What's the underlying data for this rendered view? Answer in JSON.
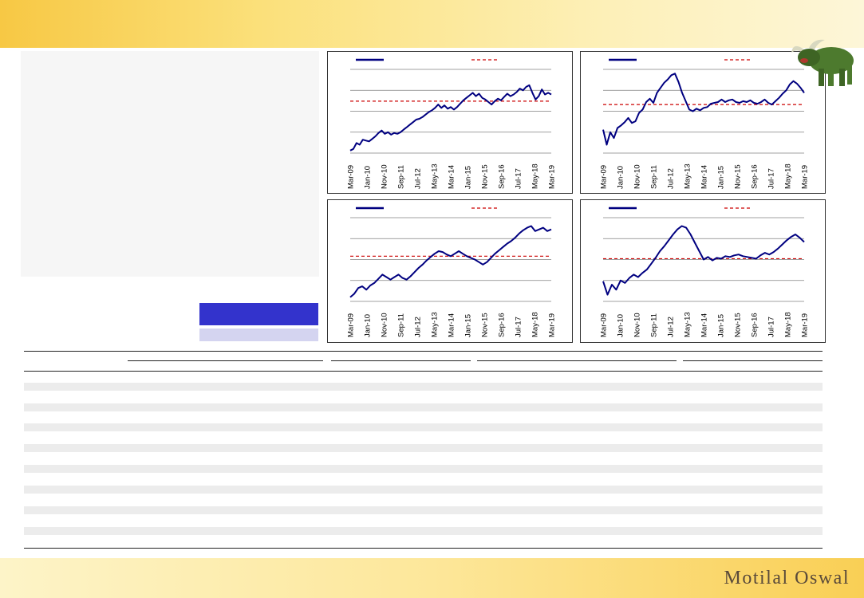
{
  "brand": {
    "name": "Motilal Oswal"
  },
  "colors": {
    "series": "#000080",
    "average": "#cc0000",
    "grid": "#808080",
    "legend_dark": "#3333cc",
    "legend_light": "#d4d4f0"
  },
  "icons": {
    "mascot": "bull-icon"
  },
  "chart_data": [
    {
      "type": "line",
      "x_tick_labels": [
        "Mar-09",
        "Jan-10",
        "Nov-10",
        "Sep-11",
        "Jul-12",
        "May-13",
        "Mar-14",
        "Jan-15",
        "Nov-15",
        "Sep-16",
        "Jul-17",
        "May-18",
        "Mar-19"
      ],
      "gridlines": 5,
      "series": [
        {
          "style": "solid",
          "values": [
            0.03,
            0.05,
            0.12,
            0.1,
            0.16,
            0.15,
            0.14,
            0.17,
            0.2,
            0.24,
            0.27,
            0.23,
            0.25,
            0.22,
            0.24,
            0.23,
            0.25,
            0.28,
            0.31,
            0.34,
            0.37,
            0.4,
            0.41,
            0.43,
            0.46,
            0.49,
            0.51,
            0.54,
            0.58,
            0.54,
            0.57,
            0.53,
            0.55,
            0.52,
            0.55,
            0.59,
            0.63,
            0.66,
            0.69,
            0.72,
            0.68,
            0.71,
            0.66,
            0.64,
            0.61,
            0.58,
            0.62,
            0.65,
            0.63,
            0.67,
            0.71,
            0.68,
            0.7,
            0.73,
            0.77,
            0.75,
            0.79,
            0.81,
            0.72,
            0.64,
            0.68,
            0.76,
            0.7,
            0.72,
            0.7
          ]
        }
      ],
      "average": 0.62
    },
    {
      "type": "line",
      "x_tick_labels": [
        "Mar-09",
        "Jan-10",
        "Nov-10",
        "Sep-11",
        "Jul-12",
        "May-13",
        "Mar-14",
        "Jan-15",
        "Nov-15",
        "Sep-16",
        "Jul-17",
        "May-18",
        "Mar-19"
      ],
      "gridlines": 5,
      "series": [
        {
          "style": "solid",
          "values": [
            0.28,
            0.1,
            0.25,
            0.18,
            0.3,
            0.33,
            0.37,
            0.42,
            0.36,
            0.38,
            0.48,
            0.52,
            0.61,
            0.65,
            0.6,
            0.72,
            0.78,
            0.84,
            0.88,
            0.93,
            0.95,
            0.85,
            0.72,
            0.62,
            0.52,
            0.5,
            0.53,
            0.51,
            0.54,
            0.55,
            0.59,
            0.6,
            0.61,
            0.64,
            0.61,
            0.63,
            0.64,
            0.61,
            0.6,
            0.62,
            0.61,
            0.63,
            0.6,
            0.59,
            0.61,
            0.64,
            0.6,
            0.58,
            0.62,
            0.66,
            0.71,
            0.75,
            0.82,
            0.86,
            0.83,
            0.78,
            0.72
          ]
        }
      ],
      "average": 0.58
    },
    {
      "type": "line",
      "x_tick_labels": [
        "Mar-09",
        "Jan-10",
        "Nov-10",
        "Sep-11",
        "Jul-12",
        "May-13",
        "Mar-14",
        "Jan-15",
        "Nov-15",
        "Sep-16",
        "Jul-17",
        "May-18",
        "Mar-19"
      ],
      "gridlines": 5,
      "series": [
        {
          "style": "solid",
          "values": [
            0.05,
            0.09,
            0.16,
            0.18,
            0.14,
            0.19,
            0.22,
            0.27,
            0.32,
            0.29,
            0.26,
            0.29,
            0.32,
            0.28,
            0.26,
            0.3,
            0.35,
            0.4,
            0.44,
            0.49,
            0.53,
            0.57,
            0.6,
            0.59,
            0.56,
            0.54,
            0.57,
            0.6,
            0.57,
            0.54,
            0.52,
            0.5,
            0.47,
            0.44,
            0.47,
            0.52,
            0.57,
            0.61,
            0.65,
            0.69,
            0.72,
            0.76,
            0.81,
            0.85,
            0.88,
            0.9,
            0.84,
            0.86,
            0.88,
            0.84,
            0.86
          ]
        }
      ],
      "average": 0.54
    },
    {
      "type": "line",
      "x_tick_labels": [
        "Mar-09",
        "Jan-10",
        "Nov-10",
        "Sep-11",
        "Jul-12",
        "May-13",
        "Mar-14",
        "Jan-15",
        "Nov-15",
        "Sep-16",
        "Jul-17",
        "May-18",
        "Mar-19"
      ],
      "gridlines": 5,
      "series": [
        {
          "style": "solid",
          "values": [
            0.24,
            0.08,
            0.2,
            0.14,
            0.25,
            0.22,
            0.28,
            0.32,
            0.29,
            0.34,
            0.38,
            0.45,
            0.52,
            0.6,
            0.66,
            0.73,
            0.8,
            0.86,
            0.9,
            0.88,
            0.8,
            0.7,
            0.6,
            0.5,
            0.53,
            0.49,
            0.52,
            0.51,
            0.54,
            0.53,
            0.55,
            0.56,
            0.54,
            0.53,
            0.52,
            0.51,
            0.55,
            0.58,
            0.56,
            0.59,
            0.63,
            0.68,
            0.73,
            0.77,
            0.8,
            0.76,
            0.71
          ]
        }
      ],
      "average": 0.51
    }
  ]
}
